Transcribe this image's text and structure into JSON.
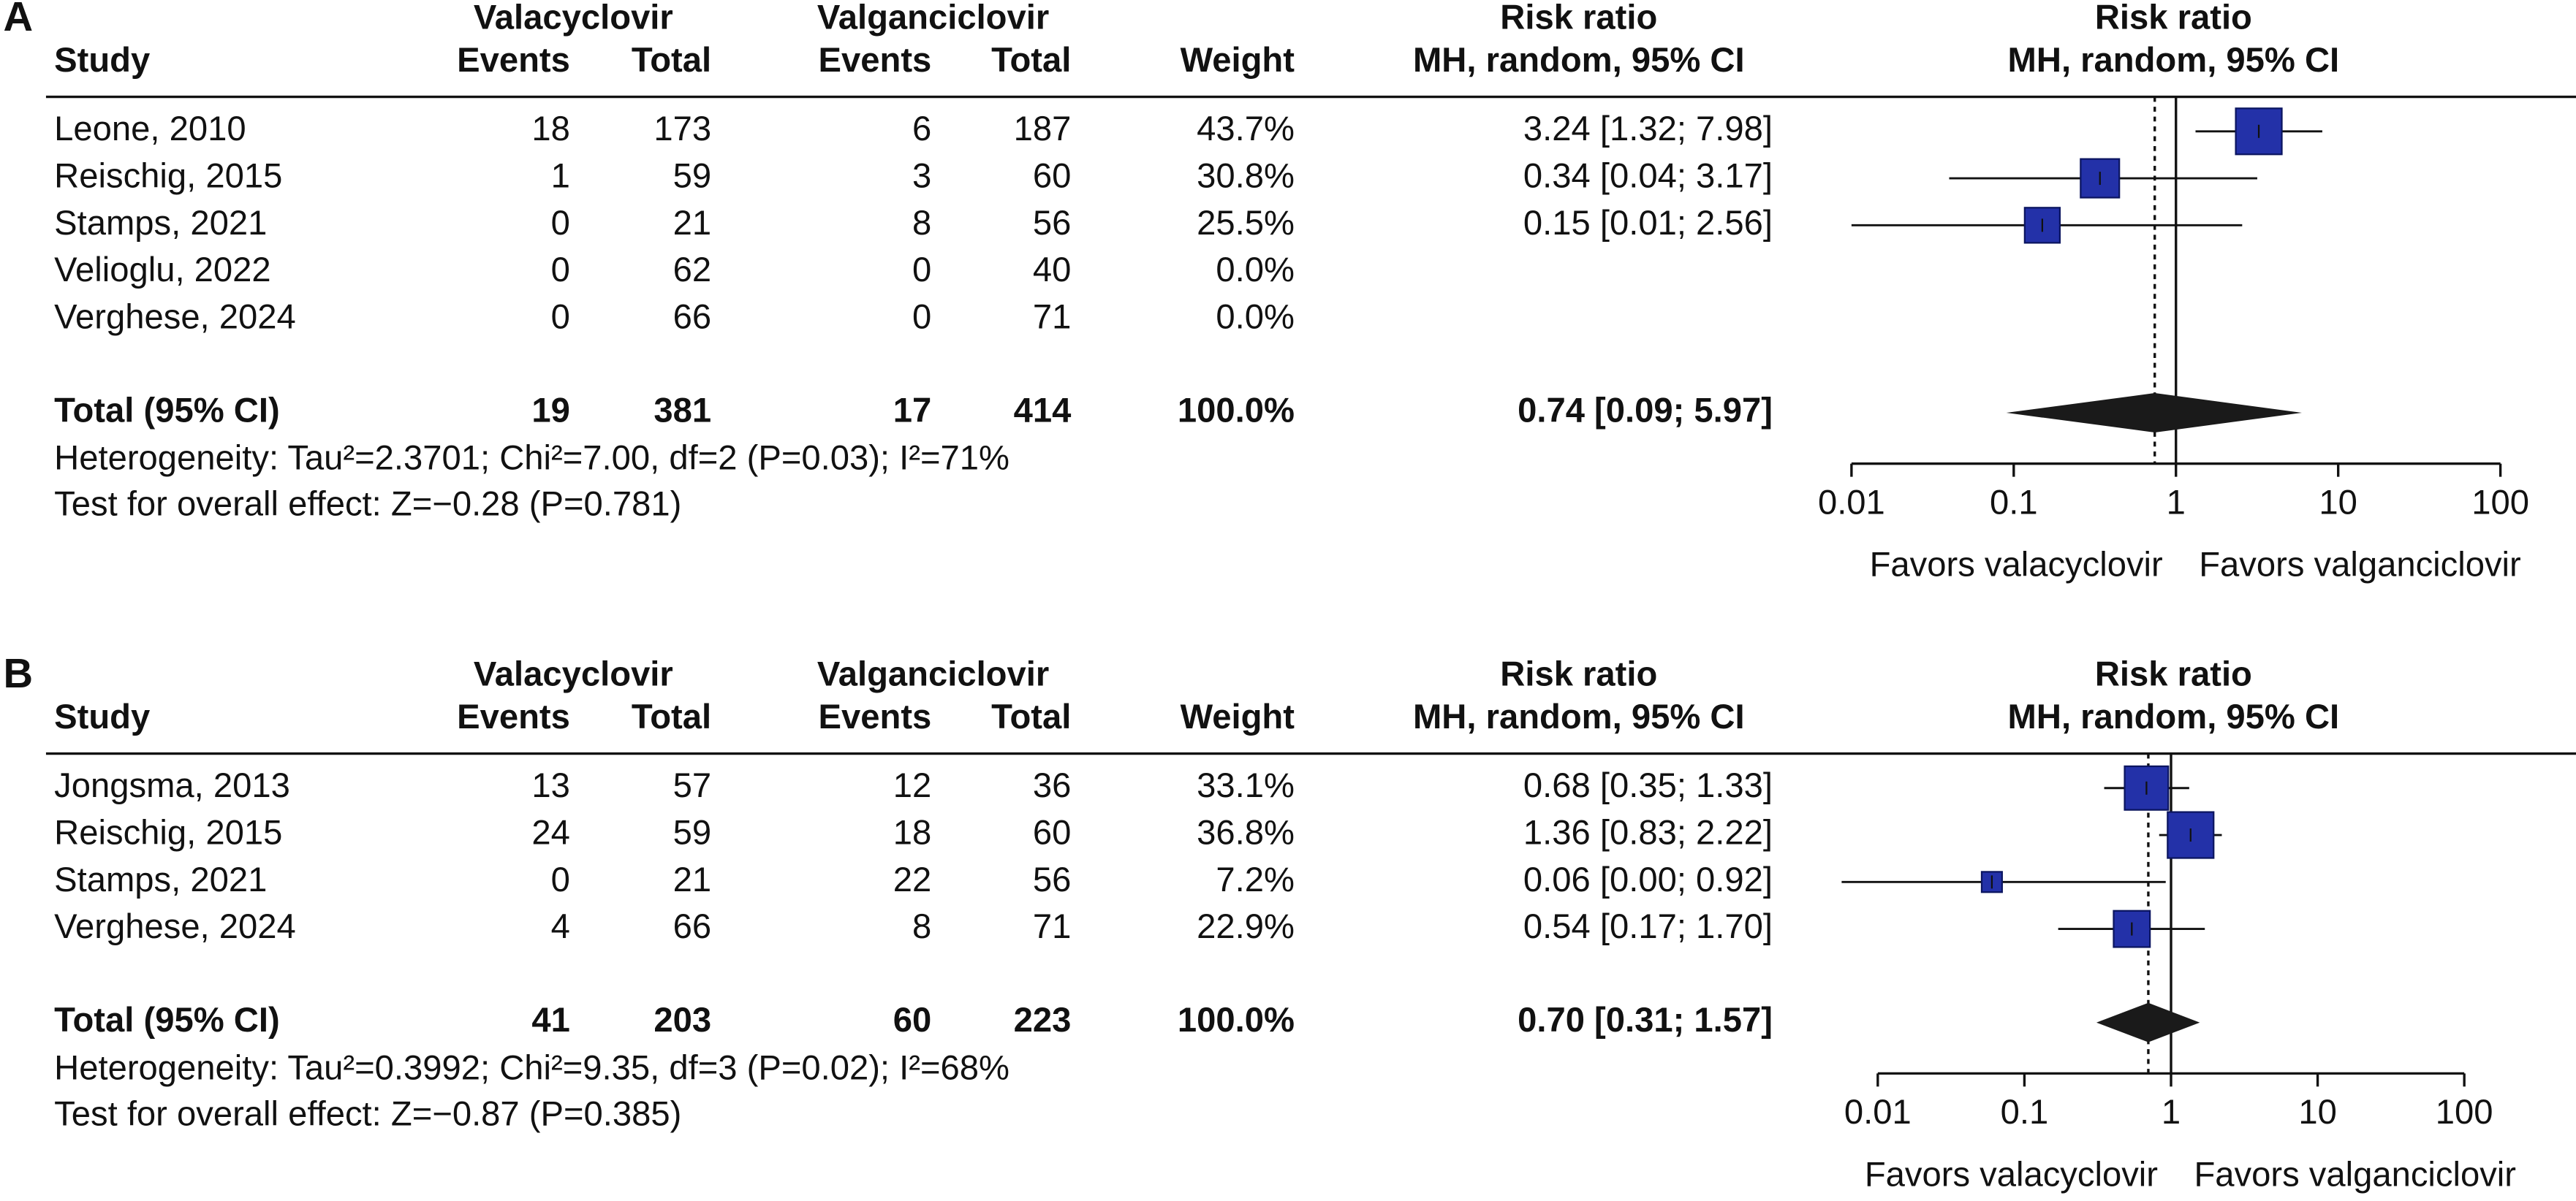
{
  "chart_data": [
    {
      "type": "forest",
      "panel_label": "A",
      "header": {
        "study": "Study",
        "groups": [
          "Valacyclovir",
          "Valganciclovir"
        ],
        "subheads": [
          "Events",
          "Total",
          "Events",
          "Total"
        ],
        "weight": "Weight",
        "effect": [
          "Risk ratio",
          "MH, random, 95% CI"
        ],
        "plot_header": [
          "Risk ratio",
          "MH, random, 95% CI"
        ]
      },
      "studies": [
        "Leone, 2010",
        "Reischig, 2015",
        "Stamps, 2021",
        "Velioglu, 2022",
        "Verghese, 2024"
      ],
      "events1": [
        18,
        1,
        0,
        0,
        0
      ],
      "total1": [
        173,
        59,
        21,
        62,
        66
      ],
      "events2": [
        6,
        3,
        8,
        0,
        0
      ],
      "total2": [
        187,
        60,
        56,
        40,
        71
      ],
      "weight": [
        43.7,
        30.8,
        25.5,
        0,
        0
      ],
      "weight_labels": [
        "43.7%",
        "30.8%",
        "25.5%",
        "0.0%",
        "0.0%"
      ],
      "rr": [
        3.24,
        0.34,
        0.15,
        null,
        null
      ],
      "lower": [
        1.32,
        0.04,
        0.01,
        null,
        null
      ],
      "upper": [
        7.98,
        3.17,
        2.56,
        null,
        null
      ],
      "rr_labels": [
        "3.24 [1.32; 7.98]",
        "0.34 [0.04; 3.17]",
        "0.15 [0.01; 2.56]",
        null,
        null
      ],
      "total": {
        "label": "Total (95% CI)",
        "events1": 19,
        "total1": 381,
        "events2": 17,
        "total2": 414,
        "weight_label": "100.0%",
        "rr": 0.74,
        "lower": 0.09,
        "upper": 5.97,
        "rr_label": "0.74 [0.09; 5.97]"
      },
      "heterogeneity": "Heterogeneity: Tau²=2.3701; Chi²=7.00, df=2 (P=0.03); I²=71%",
      "overall_effect": "Test for overall effect: Z=−0.28 (P=0.781)",
      "xscale": "log",
      "xlim": [
        0.01,
        100
      ],
      "xticks": [
        0.01,
        0.1,
        1,
        10,
        100
      ],
      "reference": 1,
      "favors": [
        "Favors valacyclovir",
        "Favors valganciclovir"
      ],
      "color": "#2331a8",
      "diamond_color": "#1a1a1a"
    },
    {
      "type": "forest",
      "panel_label": "B",
      "header": {
        "study": "Study",
        "groups": [
          "Valacyclovir",
          "Valganciclovir"
        ],
        "subheads": [
          "Events",
          "Total",
          "Events",
          "Total"
        ],
        "weight": "Weight",
        "effect": [
          "Risk ratio",
          "MH, random, 95% CI"
        ],
        "plot_header": [
          "Risk ratio",
          "MH, random, 95% CI"
        ]
      },
      "studies": [
        "Jongsma, 2013",
        "Reischig, 2015",
        "Stamps, 2021",
        "Verghese, 2024"
      ],
      "events1": [
        13,
        24,
        0,
        4
      ],
      "total1": [
        57,
        59,
        21,
        66
      ],
      "events2": [
        12,
        18,
        22,
        8
      ],
      "total2": [
        36,
        60,
        56,
        71
      ],
      "weight": [
        33.1,
        36.8,
        7.2,
        22.9
      ],
      "weight_labels": [
        "33.1%",
        "36.8%",
        "7.2%",
        "22.9%"
      ],
      "rr": [
        0.68,
        1.36,
        0.06,
        0.54
      ],
      "lower": [
        0.35,
        0.83,
        0,
        0.17
      ],
      "upper": [
        1.33,
        2.22,
        0.92,
        1.7
      ],
      "rr_labels": [
        "0.68 [0.35; 1.33]",
        "1.36 [0.83; 2.22]",
        "0.06 [0.00; 0.92]",
        "0.54 [0.17; 1.70]"
      ],
      "total": {
        "label": "Total (95% CI)",
        "events1": 41,
        "total1": 203,
        "events2": 60,
        "total2": 223,
        "weight_label": "100.0%",
        "rr": 0.7,
        "lower": 0.31,
        "upper": 1.57,
        "rr_label": "0.70 [0.31; 1.57]"
      },
      "heterogeneity": "Heterogeneity: Tau²=0.3992; Chi²=9.35, df=3 (P=0.02); I²=68%",
      "overall_effect": "Test for overall effect: Z=−0.87 (P=0.385)",
      "xscale": "log",
      "xlim": [
        0.01,
        100
      ],
      "xticks": [
        0.01,
        0.1,
        1,
        10,
        100
      ],
      "reference": 1,
      "favors": [
        "Favors valacyclovir",
        "Favors valganciclovir"
      ],
      "color": "#2331a8",
      "diamond_color": "#1a1a1a"
    }
  ]
}
